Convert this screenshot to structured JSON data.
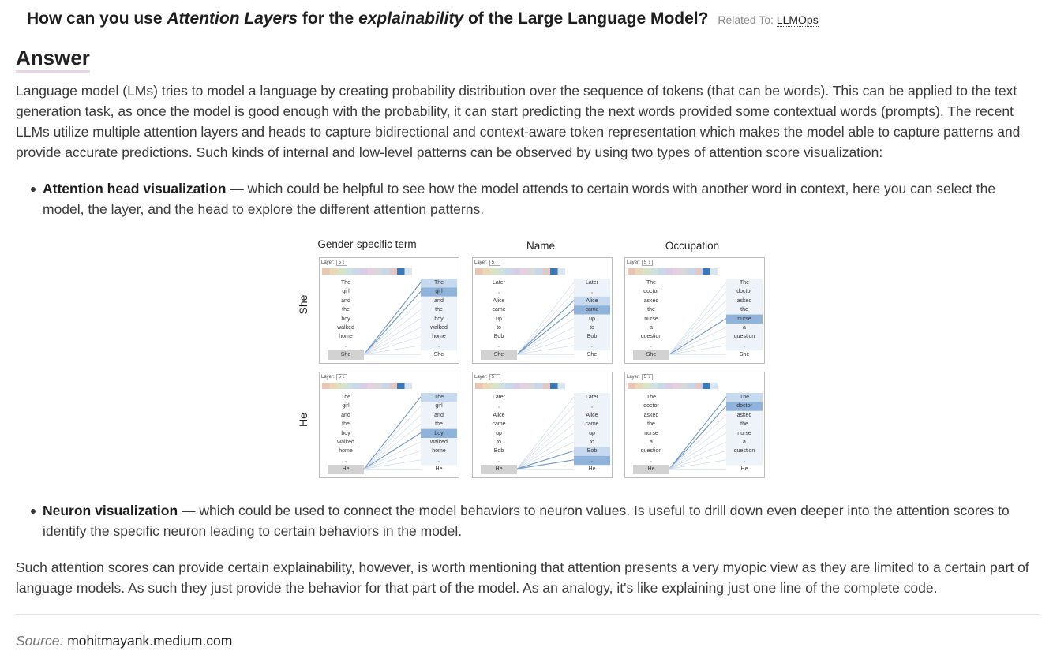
{
  "question": {
    "prefix": "How can you use ",
    "em1": "Attention Layers",
    "mid": " for the ",
    "em2": "explainability",
    "suffix": " of the Large Language Model?",
    "related_label": "Related To:",
    "related_link": "LLMOps"
  },
  "answer_heading": "Answer",
  "paragraph_1": "Language model (LMs) tries to model a language by creating probability distribution over the sequence of tokens (that can be words). This can be applied to the text generation task, as once the model is good enough with the probability, it can start predicting the next words provided some contextual words (prompts). The recent LLMs utilize multiple attention layers and heads to capture bidirectional and context-aware token representation which makes the model able to capture patterns and provide accurate predictions. Such kinds of internal and low-level patterns can be observed by using two types of attention score visualization:",
  "bullets": [
    {
      "title": "Attention head visualization",
      "text": " — which could be helpful to see how the model attends to certain words with another word in context, here you can select the model, the layer, and the head to explore the different attention patterns."
    },
    {
      "title": "Neuron visualization",
      "text": " — which could be used to connect the model behaviors to neuron values. Is useful to drill down even deeper into the attention scores to identify the specific neuron leading to certain behaviors in the model."
    }
  ],
  "figure": {
    "columns": [
      "Gender-specific term",
      "Name",
      "Occupation"
    ],
    "rows": [
      "She",
      "He"
    ],
    "layer_label": "Layer:",
    "layer_value": "5",
    "sentences": {
      "gender": [
        "The",
        "girl",
        "and",
        "the",
        "boy",
        "walked",
        "home",
        "."
      ],
      "name": [
        "Later",
        ",",
        "Alice",
        "came",
        "up",
        "to",
        "Bob",
        "."
      ],
      "occupation": [
        "The",
        "doctor",
        "asked",
        "the",
        "nurse",
        "a",
        "question",
        "."
      ]
    },
    "highlights": {
      "she_gender": [
        0,
        1
      ],
      "she_name": [
        2,
        3
      ],
      "she_occupation": [
        4
      ],
      "he_gender": [
        0,
        4
      ],
      "he_name": [
        6,
        7
      ],
      "he_occupation": [
        0,
        1
      ]
    },
    "head_colors": [
      "#e8c6b4",
      "#e9d7b8",
      "#d9e3c4",
      "#cfe1dc",
      "#c9d9ea",
      "#d6cde6",
      "#e6cfe0",
      "#d8d8d8",
      "#c7d6e8",
      "#e0c8c8",
      "#3a78b8",
      "#d8e4ef"
    ]
  },
  "paragraph_final": "Such attention scores can provide certain explainability, however, is worth mentioning that attention presents a very myopic view as they are limited to a certain part of language models. As such they just provide the behavior for that part of the model. As an analogy, it's like explaining just one line of the complete code.",
  "source": {
    "label": "Source:",
    "value": "mohitmayank.medium.com"
  }
}
